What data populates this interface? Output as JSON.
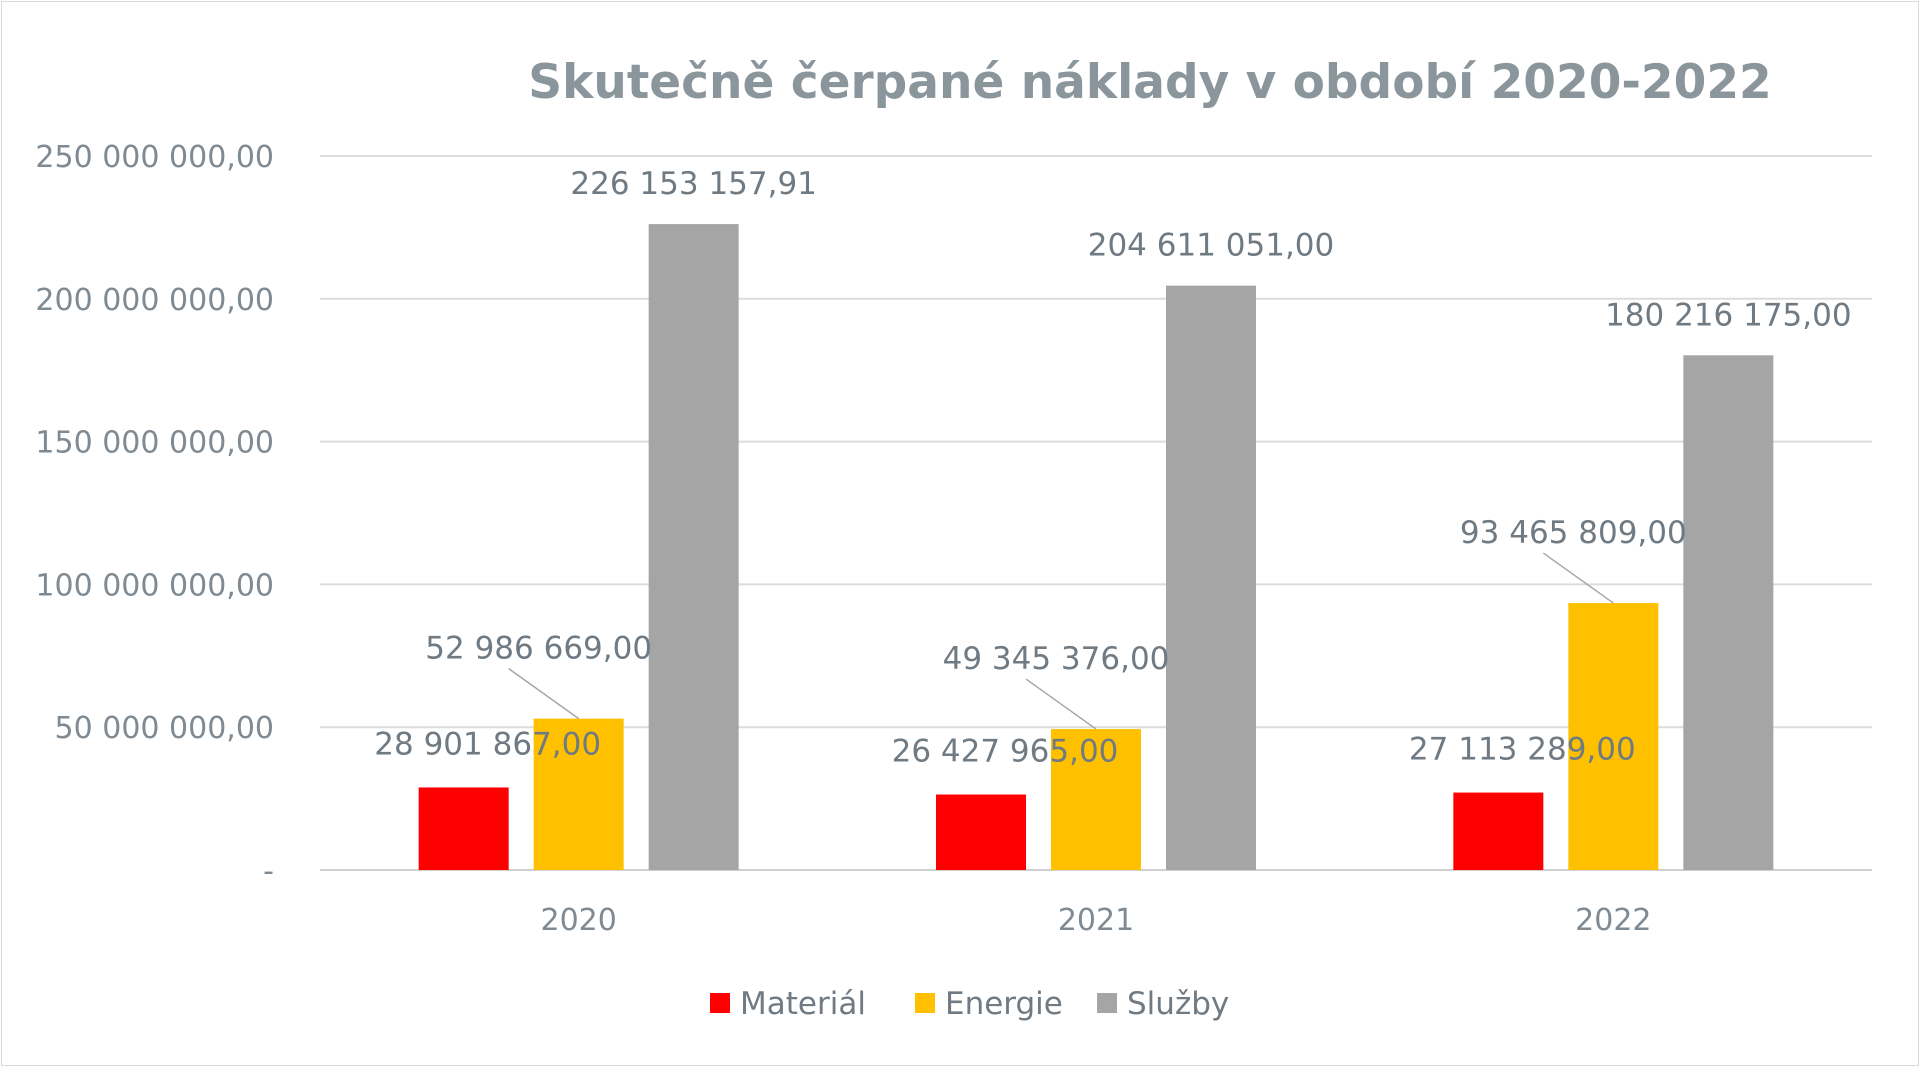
{
  "chart_data": {
    "type": "bar",
    "title": "Skutečně čerpané náklady v období 2020-2022",
    "categories": [
      "2020",
      "2021",
      "2022"
    ],
    "series": [
      {
        "name": "Materiál",
        "color": "#ff0000",
        "values": [
          28901867.0,
          26427965.0,
          27113289.0
        ],
        "labels": [
          "28 901 867,00",
          "26 427 965,00",
          "27 113 289,00"
        ]
      },
      {
        "name": "Energie",
        "color": "#ffc000",
        "values": [
          52986669.0,
          49345376.0,
          93465809.0
        ],
        "labels": [
          "52 986 669,00",
          "49 345 376,00",
          "93 465 809,00"
        ]
      },
      {
        "name": "Služby",
        "color": "#a5a5a5",
        "values": [
          226153157.91,
          204611051.0,
          180216175.0
        ],
        "labels": [
          "226 153 157,91",
          "204 611 051,00",
          "180 216 175,00"
        ]
      }
    ],
    "yticks": [
      {
        "value": 0,
        "label": "-"
      },
      {
        "value": 50000000,
        "label": "50 000 000,00"
      },
      {
        "value": 100000000,
        "label": "100 000 000,00"
      },
      {
        "value": 150000000,
        "label": "150 000 000,00"
      },
      {
        "value": 200000000,
        "label": "200 000 000,00"
      },
      {
        "value": 250000000,
        "label": "250 000 000,00"
      }
    ],
    "ylim": [
      0,
      250000000
    ],
    "grid": true,
    "legend": "bottom"
  }
}
